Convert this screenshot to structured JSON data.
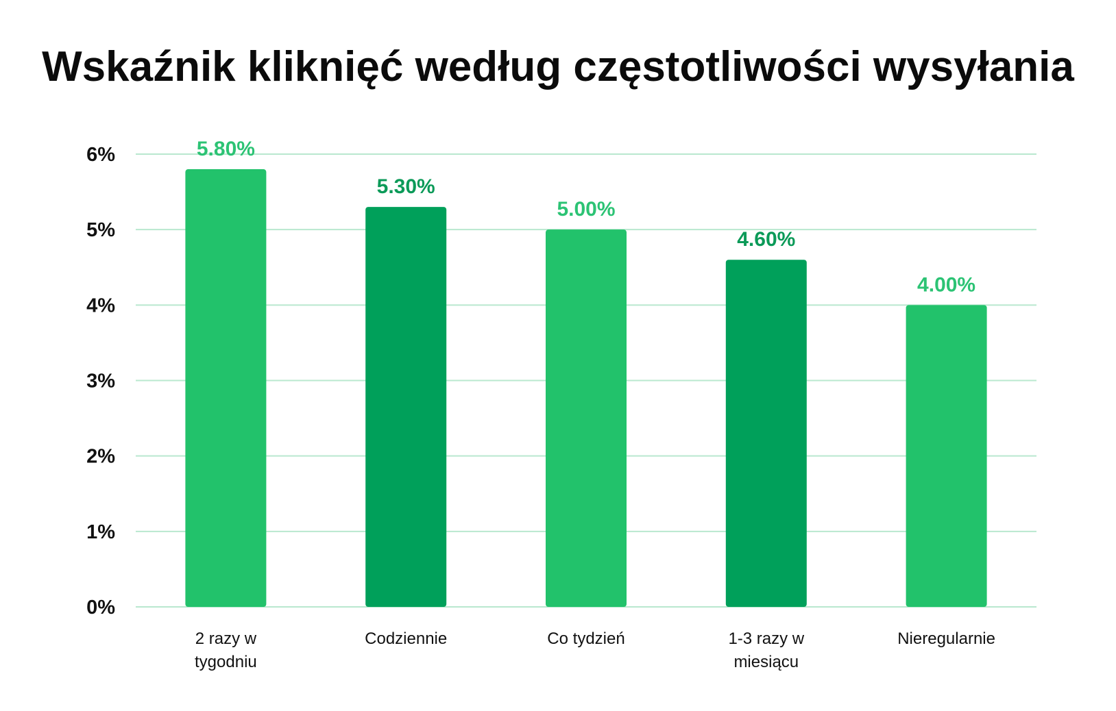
{
  "chart_data": {
    "type": "bar",
    "title": "Wskaźnik kliknięć według częstotliwości wysyłania",
    "xlabel": "",
    "ylabel": "",
    "categories": [
      [
        "2 razy w",
        "tygodniu"
      ],
      [
        "Codziennie"
      ],
      [
        "Co tydzień"
      ],
      [
        "1-3 razy w",
        "miesiącu"
      ],
      [
        "Nieregularnie"
      ]
    ],
    "values": [
      5.8,
      5.3,
      5.0,
      4.6,
      4.0
    ],
    "data_labels": [
      "5.80%",
      "5.30%",
      "5.00%",
      "4.60%",
      "4.00%"
    ],
    "bar_colors": [
      "#22c26b",
      "#00a05a",
      "#22c26b",
      "#00a05a",
      "#22c26b"
    ],
    "label_colors": [
      "#2cc374",
      "#0b9a58",
      "#2cc374",
      "#0b9a58",
      "#2cc374"
    ],
    "ylim": [
      0,
      6
    ],
    "yticks": [
      0,
      1,
      2,
      3,
      4,
      5,
      6
    ],
    "ytick_labels": [
      "0%",
      "1%",
      "2%",
      "3%",
      "4%",
      "5%",
      "6%"
    ],
    "grid": true,
    "grid_color": "#b9e8cf",
    "legend": "none"
  }
}
